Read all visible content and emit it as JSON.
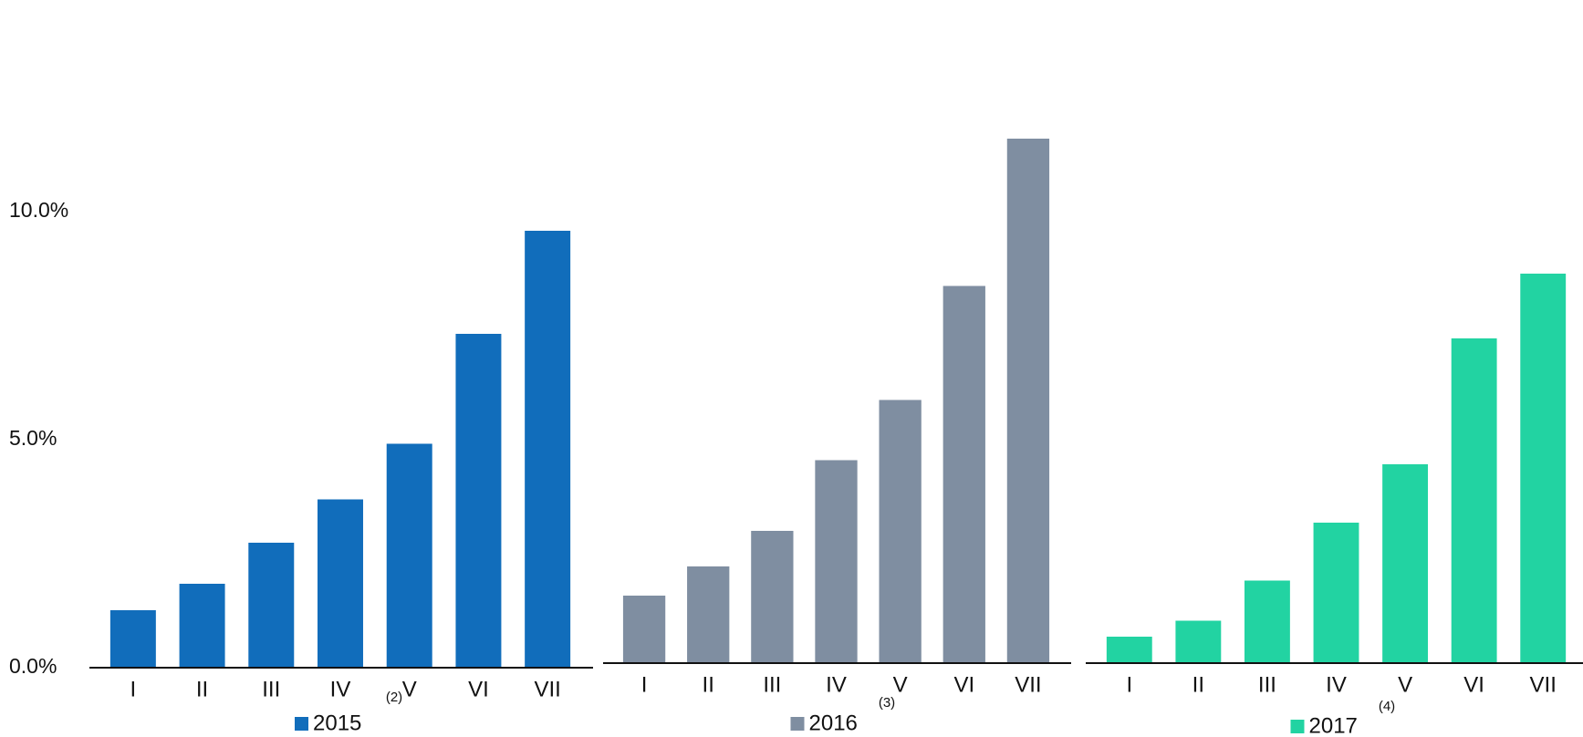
{
  "chart_data": [
    {
      "type": "bar",
      "categories": [
        "I",
        "II",
        "III",
        "IV",
        "V",
        "VI",
        "VII"
      ],
      "series": [
        {
          "name": "2015",
          "color": "#116dbb",
          "values": [
            1.26,
            1.84,
            2.74,
            3.69,
            4.91,
            7.32,
            9.58
          ]
        }
      ],
      "note": "(2)",
      "ylim": [
        0,
        12
      ],
      "yticks": [
        {
          "value": 0,
          "label": "0.0%"
        },
        {
          "value": 5,
          "label": "5.0%"
        },
        {
          "value": 10,
          "label": "10.0%"
        }
      ]
    },
    {
      "type": "bar",
      "categories": [
        "I",
        "II",
        "III",
        "IV",
        "V",
        "VI",
        "VII"
      ],
      "series": [
        {
          "name": "2016",
          "color": "#7f8ea1",
          "values": [
            1.48,
            2.12,
            2.9,
            4.45,
            5.77,
            8.27,
            11.5
          ]
        }
      ],
      "note": "(3)",
      "ylim": [
        0,
        12
      ]
    },
    {
      "type": "bar",
      "categories": [
        "I",
        "II",
        "III",
        "IV",
        "V",
        "VI",
        "VII"
      ],
      "series": [
        {
          "name": "2017",
          "color": "#22d3a2",
          "values": [
            0.58,
            0.93,
            1.81,
            3.08,
            4.36,
            7.12,
            8.54
          ]
        }
      ],
      "note": "(4)",
      "ylim": [
        0,
        12
      ]
    }
  ]
}
